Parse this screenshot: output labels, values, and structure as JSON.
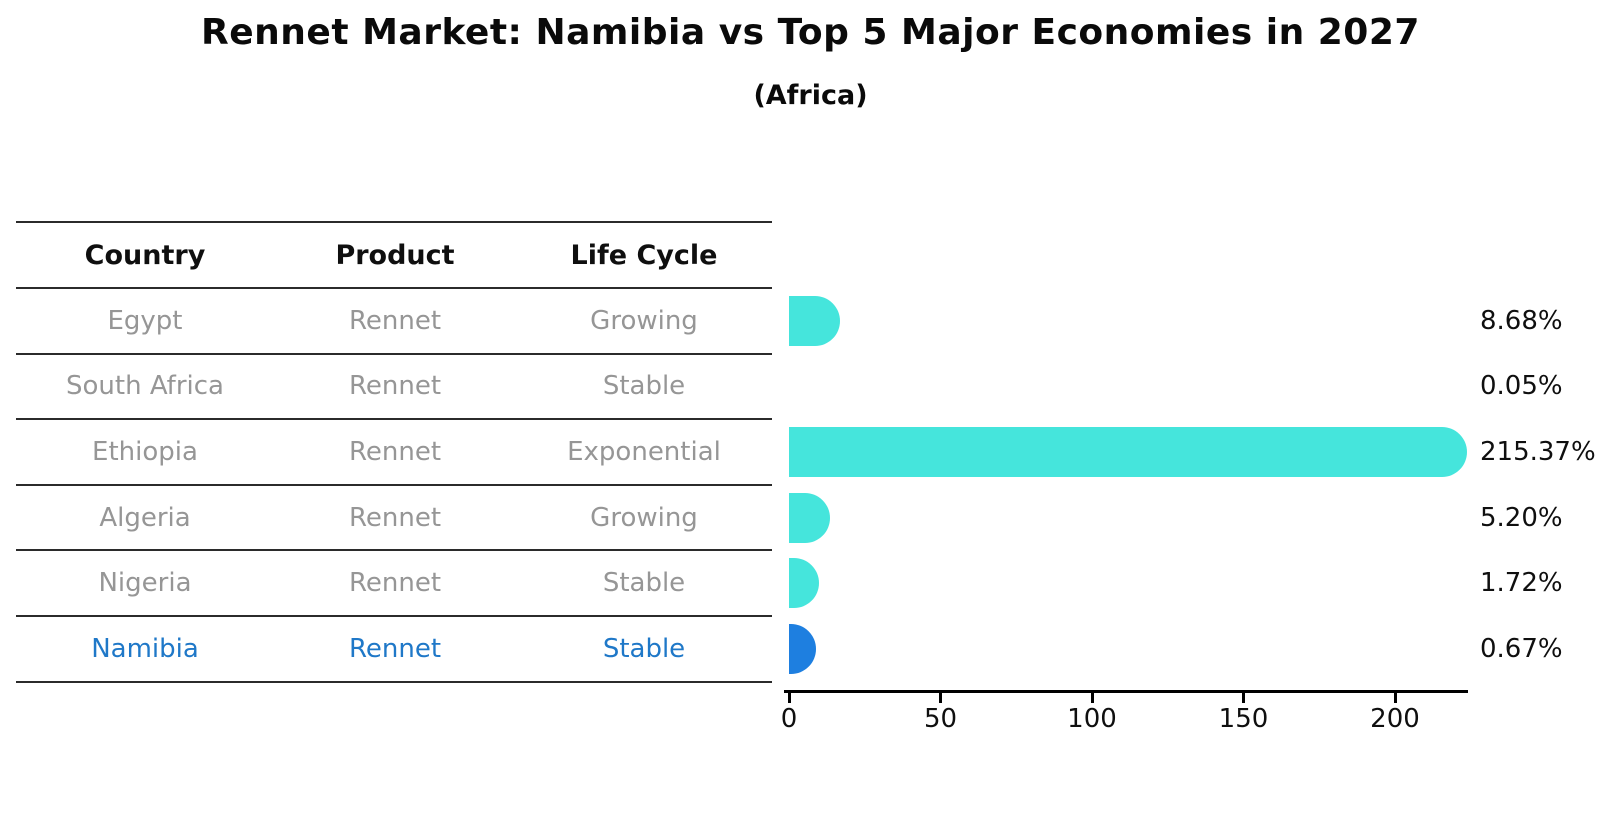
{
  "header": {
    "title": "Rennet Market: Namibia vs Top 5 Major Economies in 2027",
    "subtitle": "(Africa)"
  },
  "table": {
    "columns": [
      "Country",
      "Product",
      "Life Cycle"
    ],
    "rows": [
      {
        "country": "Egypt",
        "product": "Rennet",
        "life_cycle": "Growing",
        "highlight": false
      },
      {
        "country": "South Africa",
        "product": "Rennet",
        "life_cycle": "Stable",
        "highlight": false
      },
      {
        "country": "Ethiopia",
        "product": "Rennet",
        "life_cycle": "Exponential",
        "highlight": false
      },
      {
        "country": "Algeria",
        "product": "Rennet",
        "life_cycle": "Growing",
        "highlight": false
      },
      {
        "country": "Nigeria",
        "product": "Rennet",
        "life_cycle": "Stable",
        "highlight": false
      },
      {
        "country": "Namibia",
        "product": "Rennet",
        "life_cycle": "Stable",
        "highlight": true
      }
    ]
  },
  "chart_data": {
    "type": "bar",
    "orientation": "horizontal",
    "title": "Rennet Market: Namibia vs Top 5 Major Economies in 2027",
    "subtitle": "(Africa)",
    "categories": [
      "Egypt",
      "South Africa",
      "Ethiopia",
      "Algeria",
      "Nigeria",
      "Namibia"
    ],
    "values": [
      8.68,
      0.05,
      215.37,
      5.2,
      1.72,
      0.67
    ],
    "value_labels": [
      "8.68%",
      "0.05%",
      "215.37%",
      "5.20%",
      "1.72%",
      "0.67%"
    ],
    "xlabel": "",
    "ylabel": "",
    "xlim": [
      0,
      225
    ],
    "x_ticks": [
      "0",
      "50",
      "100",
      "150",
      "200"
    ],
    "x_tick_values": [
      0,
      50,
      100,
      150,
      200
    ],
    "grid": false,
    "legend": null,
    "bar_color_default": "#45e5dc",
    "bar_color_highlight": "#1e7fe0",
    "highlight_category": "Namibia"
  },
  "colors": {
    "row_text": "#969696",
    "highlight_text": "#1f78c8",
    "header_text": "#0f0f0f",
    "line": "#2b2b2b",
    "axis": "#000000"
  }
}
